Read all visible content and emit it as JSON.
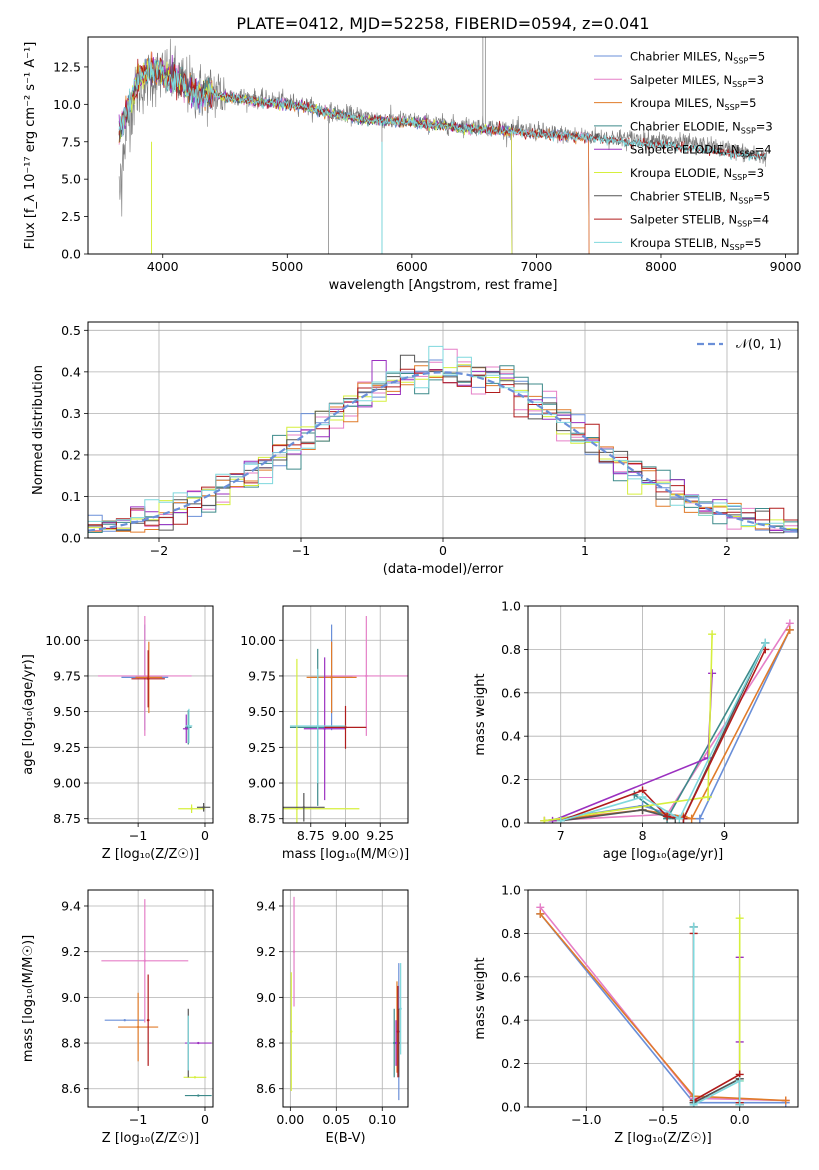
{
  "figure_title": "PLATE=0412, MJD=52258, FIBERID=0594, z=0.041",
  "colors": {
    "Chabrier MILES": "#6a8fd8",
    "Salpeter MILES": "#e57fc7",
    "Kroupa MILES": "#e07b2a",
    "Chabrier ELODIE": "#3d8a8a",
    "Salpeter ELODIE": "#9b30c0",
    "Kroupa ELODIE": "#d6ef3d",
    "Chabrier STELIB": "#555555",
    "Salpeter STELIB": "#b01c1c",
    "Kroupa STELIB": "#7fd8dd"
  },
  "chart_data": [
    {
      "id": "spectrum",
      "type": "line",
      "title": "PLATE=0412, MJD=52258, FIBERID=0594, z=0.041",
      "xlabel": "wavelength [Angstrom, rest frame]",
      "ylabel": "Flux [f_λ 10⁻¹⁷ erg cm⁻² s⁻¹ A⁻¹]",
      "xlim": [
        3400,
        9100
      ],
      "ylim": [
        0,
        14.5
      ],
      "xticks": [
        4000,
        5000,
        6000,
        7000,
        8000,
        9000
      ],
      "yticks": [
        0.0,
        2.5,
        5.0,
        7.5,
        10.0,
        12.5
      ],
      "legend_position": "upper right",
      "legend": [
        {
          "name": "Chabrier MILES",
          "nssp": "5"
        },
        {
          "name": "Salpeter MILES",
          "nssp": "3"
        },
        {
          "name": "Kroupa MILES",
          "nssp": "5"
        },
        {
          "name": "Chabrier ELODIE",
          "nssp": "3"
        },
        {
          "name": "Salpeter ELODIE",
          "nssp": "4"
        },
        {
          "name": "Kroupa ELODIE",
          "nssp": "3"
        },
        {
          "name": "Chabrier STELIB",
          "nssp": "5"
        },
        {
          "name": "Salpeter STELIB",
          "nssp": "4"
        },
        {
          "name": "Kroupa STELIB",
          "nssp": "5"
        }
      ],
      "data_continuum": {
        "x": [
          3650,
          3700,
          3800,
          3900,
          4000,
          4100,
          4200,
          4300,
          4400,
          4500,
          4600,
          4800,
          5000,
          5200,
          5400,
          5600,
          5800,
          6000,
          6200,
          6400,
          6600,
          6800,
          7000,
          7200,
          7400,
          7600,
          7800,
          8000,
          8200,
          8400,
          8600,
          8800
        ],
        "y": [
          5.5,
          8.5,
          11.0,
          11.8,
          12.0,
          11.8,
          11.2,
          10.8,
          10.8,
          10.7,
          10.6,
          10.3,
          10.2,
          9.8,
          9.4,
          9.2,
          9.0,
          8.9,
          8.7,
          8.6,
          8.5,
          8.3,
          8.2,
          8.0,
          7.9,
          7.8,
          7.7,
          7.6,
          7.4,
          7.2,
          6.9,
          6.5
        ]
      },
      "model_continuum": {
        "x": [
          3650,
          3700,
          3800,
          3900,
          4000,
          4100,
          4200,
          4300,
          4400,
          4500,
          4600,
          4800,
          5000,
          5200,
          5400,
          5600,
          5800,
          6000,
          6200,
          6400,
          6600,
          6800,
          7000,
          7200,
          7400,
          7600,
          7800,
          8000,
          8200,
          8400,
          8600,
          8800
        ],
        "y": [
          8.2,
          9.2,
          11.6,
          12.3,
          12.0,
          11.6,
          11.0,
          10.6,
          10.7,
          10.5,
          10.4,
          10.1,
          10.0,
          9.7,
          9.3,
          9.0,
          8.9,
          8.8,
          8.6,
          8.4,
          8.3,
          8.2,
          8.0,
          7.9,
          7.8,
          7.6,
          7.4,
          7.3,
          7.1,
          6.9,
          6.7,
          6.5
        ]
      },
      "model_endpoints": {
        "MILES": 7420,
        "ELODIE": 6800,
        "STELIB": 8850
      }
    },
    {
      "id": "residual_histogram",
      "type": "line",
      "xlabel": "(data-model)/error",
      "ylabel": "Normed distribution",
      "xlim": [
        -2.5,
        2.5
      ],
      "ylim": [
        0,
        0.52
      ],
      "xticks": [
        -2,
        -1,
        0,
        1,
        2
      ],
      "yticks": [
        0.0,
        0.1,
        0.2,
        0.3,
        0.4,
        0.5
      ],
      "legend_position": "upper right",
      "reference": {
        "name": "𝒩(0, 1)",
        "color": "#6a8fd8"
      },
      "bin_width": 0.1,
      "bins_start": -2.5
    },
    {
      "id": "age_vs_Z",
      "type": "scatter",
      "xlabel": "Z [log₁₀(Z/Z☉)]",
      "ylabel": "age  [log₁₀(age/yr)]",
      "xlim": [
        -1.75,
        0.12
      ],
      "ylim": [
        8.72,
        10.24
      ],
      "xticks": [
        -1,
        0
      ],
      "yticks": [
        8.75,
        9.0,
        9.25,
        9.5,
        9.75,
        10.0
      ],
      "points": [
        {
          "model": "Chabrier MILES",
          "x": -0.9,
          "y": 9.74,
          "xerr": 0.35,
          "yerr": 0.37
        },
        {
          "model": "Salpeter MILES",
          "x": -0.9,
          "y": 9.75,
          "xerr": 0.7,
          "yerr": 0.42
        },
        {
          "model": "Kroupa MILES",
          "x": -0.84,
          "y": 9.74,
          "xerr": 0.2,
          "yerr": 0.25
        },
        {
          "model": "Chabrier ELODIE",
          "x": -0.25,
          "y": 9.39,
          "xerr": 0.05,
          "yerr": 0.12
        },
        {
          "model": "Salpeter ELODIE",
          "x": -0.28,
          "y": 9.38,
          "xerr": 0.05,
          "yerr": 0.1
        },
        {
          "model": "Kroupa ELODIE",
          "x": -0.2,
          "y": 8.82,
          "xerr": 0.2,
          "yerr": 0.03
        },
        {
          "model": "Chabrier STELIB",
          "x": -0.02,
          "y": 8.83,
          "xerr": 0.1,
          "yerr": 0.03
        },
        {
          "model": "Salpeter STELIB",
          "x": -0.85,
          "y": 9.73,
          "xerr": 0.25,
          "yerr": 0.2
        },
        {
          "model": "Kroupa STELIB",
          "x": -0.24,
          "y": 9.4,
          "xerr": 0.05,
          "yerr": 0.12
        }
      ]
    },
    {
      "id": "age_vs_mass",
      "type": "scatter",
      "xlabel": "mass [log₁₀(M/M☉)]",
      "ylabel": "",
      "xlim": [
        8.55,
        9.45
      ],
      "ylim": [
        8.72,
        10.24
      ],
      "xticks": [
        8.75,
        9.0,
        9.25
      ],
      "yticks": [
        8.75,
        9.0,
        9.25,
        9.5,
        9.75,
        10.0
      ],
      "points": [
        {
          "model": "Chabrier MILES",
          "x": 8.9,
          "y": 9.74,
          "xerr": 0.15,
          "yerr": 0.37
        },
        {
          "model": "Salpeter MILES",
          "x": 9.15,
          "y": 9.75,
          "xerr": 0.3,
          "yerr": 0.42
        },
        {
          "model": "Kroupa MILES",
          "x": 8.9,
          "y": 9.74,
          "xerr": 0.18,
          "yerr": 0.25
        },
        {
          "model": "Chabrier ELODIE",
          "x": 8.8,
          "y": 9.39,
          "xerr": 0.2,
          "yerr": 0.55
        },
        {
          "model": "Salpeter ELODIE",
          "x": 8.85,
          "y": 9.38,
          "xerr": 0.15,
          "yerr": 0.5
        },
        {
          "model": "Kroupa ELODIE",
          "x": 8.65,
          "y": 8.82,
          "xerr": 0.45,
          "yerr": 1.05
        },
        {
          "model": "Chabrier STELIB",
          "x": 8.7,
          "y": 8.83,
          "xerr": 0.15,
          "yerr": 0.1
        },
        {
          "model": "Salpeter STELIB",
          "x": 9.0,
          "y": 9.39,
          "xerr": 0.15,
          "yerr": 0.15
        },
        {
          "model": "Kroupa STELIB",
          "x": 8.8,
          "y": 9.4,
          "xerr": 0.2,
          "yerr": 0.4
        }
      ]
    },
    {
      "id": "massweight_vs_age",
      "type": "line",
      "xlabel": "age  [log₁₀(age/yr)]",
      "ylabel": "mass weight",
      "xlim": [
        6.6,
        9.9
      ],
      "ylim": [
        0,
        1.0
      ],
      "xticks": [
        7,
        8,
        9
      ],
      "yticks": [
        0.0,
        0.2,
        0.4,
        0.6,
        0.8,
        1.0
      ],
      "series": [
        {
          "model": "Chabrier MILES",
          "x": [
            6.8,
            8.0,
            8.5,
            8.7,
            9.8
          ],
          "y": [
            0.01,
            0.08,
            0.02,
            0.02,
            0.89
          ]
        },
        {
          "model": "Salpeter MILES",
          "x": [
            6.8,
            8.3,
            9.8
          ],
          "y": [
            0.01,
            0.04,
            0.92
          ]
        },
        {
          "model": "Kroupa MILES",
          "x": [
            6.8,
            8.0,
            8.5,
            8.6,
            9.8
          ],
          "y": [
            0.01,
            0.06,
            0.03,
            0.02,
            0.89
          ]
        },
        {
          "model": "Chabrier ELODIE",
          "x": [
            7.9,
            8.3,
            9.5
          ],
          "y": [
            0.13,
            0.02,
            0.83
          ]
        },
        {
          "model": "Salpeter ELODIE",
          "x": [
            6.9,
            8.8,
            8.85
          ],
          "y": [
            0.01,
            0.3,
            0.69
          ]
        },
        {
          "model": "Kroupa ELODIE",
          "x": [
            6.8,
            8.8,
            8.85
          ],
          "y": [
            0.01,
            0.12,
            0.87
          ]
        },
        {
          "model": "Chabrier STELIB",
          "x": [
            7.0,
            8.0,
            8.4,
            8.5,
            9.5
          ],
          "y": [
            0.01,
            0.06,
            0.02,
            0.02,
            0.83
          ]
        },
        {
          "model": "Salpeter STELIB",
          "x": [
            7.0,
            8.0,
            8.3,
            8.5,
            9.5
          ],
          "y": [
            0.01,
            0.15,
            0.03,
            0.02,
            0.8
          ]
        },
        {
          "model": "Kroupa STELIB",
          "x": [
            7.0,
            8.0,
            8.45,
            9.5
          ],
          "y": [
            0.01,
            0.12,
            0.02,
            0.83
          ]
        }
      ]
    },
    {
      "id": "mass_vs_Z",
      "type": "scatter",
      "xlabel": "Z [log₁₀(Z/Z☉)]",
      "ylabel": "mass [log₁₀(M/M☉)]",
      "xlim": [
        -1.75,
        0.12
      ],
      "ylim": [
        8.52,
        9.47
      ],
      "xticks": [
        -1,
        0
      ],
      "yticks": [
        8.6,
        8.8,
        9.0,
        9.2,
        9.4
      ],
      "points": [
        {
          "model": "Chabrier MILES",
          "x": -1.2,
          "y": 8.9,
          "xerr": 0.3,
          "yerr": 0.0
        },
        {
          "model": "Salpeter MILES",
          "x": -0.9,
          "y": 9.16,
          "xerr": 0.65,
          "yerr": 0.27
        },
        {
          "model": "Kroupa MILES",
          "x": -1.0,
          "y": 8.87,
          "xerr": 0.3,
          "yerr": 0.15
        },
        {
          "model": "Chabrier ELODIE",
          "x": -0.1,
          "y": 8.57,
          "xerr": 0.2,
          "yerr": 0.0
        },
        {
          "model": "Salpeter ELODIE",
          "x": -0.1,
          "y": 8.8,
          "xerr": 0.2,
          "yerr": 0.0
        },
        {
          "model": "Kroupa ELODIE",
          "x": -0.15,
          "y": 8.65,
          "xerr": 0.17,
          "yerr": 0.0
        },
        {
          "model": "Chabrier STELIB",
          "x": -0.25,
          "y": 8.8,
          "xerr": 0.02,
          "yerr": 0.15
        },
        {
          "model": "Salpeter STELIB",
          "x": -0.85,
          "y": 8.9,
          "xerr": 0.02,
          "yerr": 0.2
        },
        {
          "model": "Kroupa STELIB",
          "x": -0.25,
          "y": 8.8,
          "xerr": 0.02,
          "yerr": 0.12
        }
      ]
    },
    {
      "id": "mass_vs_ebv",
      "type": "scatter",
      "xlabel": "E(B-V)",
      "ylabel": "",
      "xlim": [
        -0.008,
        0.128
      ],
      "ylim": [
        8.52,
        9.47
      ],
      "xticks": [
        0.0,
        0.05,
        0.1
      ],
      "yticks": [
        8.6,
        8.8,
        9.0,
        9.2,
        9.4
      ],
      "points": [
        {
          "model": "Chabrier MILES",
          "x": 0.118,
          "y": 8.85,
          "xerr": 0.0,
          "yerr": 0.3
        },
        {
          "model": "Salpeter MILES",
          "x": 0.004,
          "y": 9.2,
          "xerr": 0.0,
          "yerr": 0.24
        },
        {
          "model": "Kroupa MILES",
          "x": 0.116,
          "y": 8.87,
          "xerr": 0.0,
          "yerr": 0.2
        },
        {
          "model": "Chabrier ELODIE",
          "x": 0.113,
          "y": 8.8,
          "xerr": 0.0,
          "yerr": 0.15
        },
        {
          "model": "Salpeter ELODIE",
          "x": 0.115,
          "y": 8.8,
          "xerr": 0.0,
          "yerr": 0.1
        },
        {
          "model": "Kroupa ELODIE",
          "x": 0.001,
          "y": 8.85,
          "xerr": 0.0,
          "yerr": 0.26
        },
        {
          "model": "Chabrier STELIB",
          "x": 0.118,
          "y": 8.8,
          "xerr": 0.0,
          "yerr": 0.15
        },
        {
          "model": "Salpeter STELIB",
          "x": 0.117,
          "y": 8.85,
          "xerr": 0.0,
          "yerr": 0.2
        },
        {
          "model": "Kroupa STELIB",
          "x": 0.12,
          "y": 8.95,
          "xerr": 0.0,
          "yerr": 0.2
        }
      ]
    },
    {
      "id": "massweight_vs_Z",
      "type": "line",
      "xlabel": "Z [log₁₀(Z/Z☉)]",
      "ylabel": "mass weight",
      "xlim": [
        -1.38,
        0.38
      ],
      "ylim": [
        0,
        1.0
      ],
      "xticks": [
        -1.0,
        -0.5,
        0.0
      ],
      "yticks": [
        0.0,
        0.2,
        0.4,
        0.6,
        0.8,
        1.0
      ],
      "series": [
        {
          "model": "Chabrier MILES",
          "x": [
            -1.3,
            -0.3,
            0.3
          ],
          "y": [
            0.89,
            0.02,
            0.02
          ]
        },
        {
          "model": "Salpeter MILES",
          "x": [
            -1.3,
            -0.3,
            0.3
          ],
          "y": [
            0.92,
            0.04,
            0.03
          ]
        },
        {
          "model": "Kroupa MILES",
          "x": [
            -1.3,
            -0.3,
            0.3
          ],
          "y": [
            0.89,
            0.05,
            0.03
          ]
        },
        {
          "model": "Chabrier ELODIE",
          "x": [
            -0.3,
            -0.3,
            0.0,
            0.0
          ],
          "y": [
            0.83,
            0.02,
            0.13,
            0.02
          ]
        },
        {
          "model": "Salpeter ELODIE",
          "x": [
            0.0,
            0.0,
            0.0
          ],
          "y": [
            0.69,
            0.3,
            0.01
          ]
        },
        {
          "model": "Kroupa ELODIE",
          "x": [
            0.0,
            0.0,
            0.0
          ],
          "y": [
            0.87,
            0.12,
            0.01
          ]
        },
        {
          "model": "Chabrier STELIB",
          "x": [
            -0.3,
            -0.3,
            0.0,
            0.0
          ],
          "y": [
            0.83,
            0.02,
            0.13,
            0.01
          ]
        },
        {
          "model": "Salpeter STELIB",
          "x": [
            -0.3,
            -0.3,
            0.0,
            0.0
          ],
          "y": [
            0.8,
            0.03,
            0.15,
            0.02
          ]
        },
        {
          "model": "Kroupa STELIB",
          "x": [
            -0.3,
            -0.3,
            0.0,
            0.0
          ],
          "y": [
            0.83,
            0.01,
            0.12,
            0.01
          ]
        }
      ]
    }
  ]
}
